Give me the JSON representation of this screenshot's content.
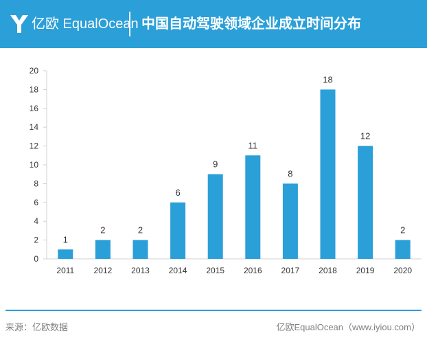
{
  "header": {
    "brand": "亿欧 EqualOcean",
    "title": "中国自动驾驶领域企业成立时间分布",
    "logo_icon": "equalocean-logo-icon"
  },
  "colors": {
    "accent": "#2a9fd8",
    "bar": "#2a9fd8"
  },
  "chart_data": {
    "type": "bar",
    "title": "中国自动驾驶领域企业成立时间分布",
    "xlabel": "",
    "ylabel": "",
    "categories": [
      "2011",
      "2012",
      "2013",
      "2014",
      "2015",
      "2016",
      "2017",
      "2018",
      "2019",
      "2020"
    ],
    "values": [
      1,
      2,
      2,
      6,
      9,
      11,
      8,
      18,
      12,
      2
    ],
    "data_labels": [
      "1",
      "2",
      "2",
      "6",
      "9",
      "11",
      "8",
      "18",
      "12",
      "2"
    ],
    "ylim": [
      0,
      20
    ],
    "yticks": [
      0,
      2,
      4,
      6,
      8,
      10,
      12,
      14,
      16,
      18,
      20
    ],
    "ytick_labels": [
      "0",
      "2",
      "4",
      "6",
      "8",
      "10",
      "12",
      "14",
      "16",
      "18",
      "20"
    ],
    "grid": false,
    "legend": "none"
  },
  "footer": {
    "source": "来源：亿欧数据",
    "credit": "亿欧EqualOcean（www.iyiou.com）"
  }
}
